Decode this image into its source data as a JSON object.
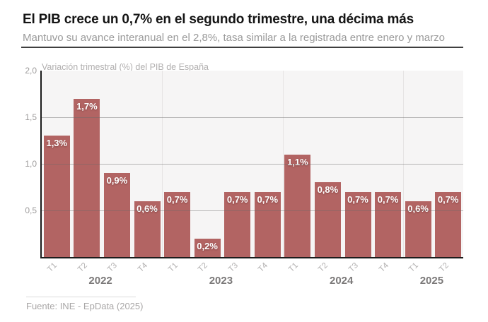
{
  "header": {
    "title": "El PIB crece un 0,7% en el segundo trimestre, una décima más",
    "subtitle": "Mantuvo su avance interanual en el 2,8%, tasa similar a la registrada entre enero y marzo"
  },
  "chart_data": {
    "type": "bar",
    "title": "Variación trimestral (%) del PIB de España",
    "xlabel": "",
    "ylabel": "Variación trimestral (%)",
    "ylim": [
      0,
      2.0
    ],
    "grid": "horizontal, plus vertical separators between years",
    "legend": "none",
    "yticks": [
      {
        "value": 2.0,
        "label": "2,0"
      },
      {
        "value": 1.5,
        "label": "1,5"
      },
      {
        "value": 1.0,
        "label": "1,0"
      },
      {
        "value": 0.5,
        "label": "0,5"
      }
    ],
    "groups": [
      {
        "year": "2022",
        "quarters": [
          {
            "q": "T1",
            "value": 1.3,
            "label": "1,3%"
          },
          {
            "q": "T2",
            "value": 1.7,
            "label": "1,7%"
          },
          {
            "q": "T3",
            "value": 0.9,
            "label": "0,9%"
          },
          {
            "q": "T4",
            "value": 0.6,
            "label": "0,6%"
          }
        ]
      },
      {
        "year": "2023",
        "quarters": [
          {
            "q": "T1",
            "value": 0.7,
            "label": "0,7%"
          },
          {
            "q": "T2",
            "value": 0.2,
            "label": "0,2%"
          },
          {
            "q": "T3",
            "value": 0.7,
            "label": "0,7%"
          },
          {
            "q": "T4",
            "value": 0.7,
            "label": "0,7%"
          }
        ]
      },
      {
        "year": "2024",
        "quarters": [
          {
            "q": "T1",
            "value": 1.1,
            "label": "1,1%"
          },
          {
            "q": "T2",
            "value": 0.8,
            "label": "0,8%"
          },
          {
            "q": "T3",
            "value": 0.7,
            "label": "0,7%"
          },
          {
            "q": "T4",
            "value": 0.7,
            "label": "0,7%"
          }
        ]
      },
      {
        "year": "2025",
        "quarters": [
          {
            "q": "T1",
            "value": 0.6,
            "label": "0,6%"
          },
          {
            "q": "T2",
            "value": 0.7,
            "label": "0,7%"
          }
        ]
      }
    ]
  },
  "footer": {
    "source": "Fuente: INE - EpData (2025)"
  },
  "colors": {
    "bar": "#b26463",
    "axis": "#1c1c1c",
    "plot_background": "#f6f5f5",
    "title_text": "#141414",
    "muted_text": "#9a9a9a"
  }
}
